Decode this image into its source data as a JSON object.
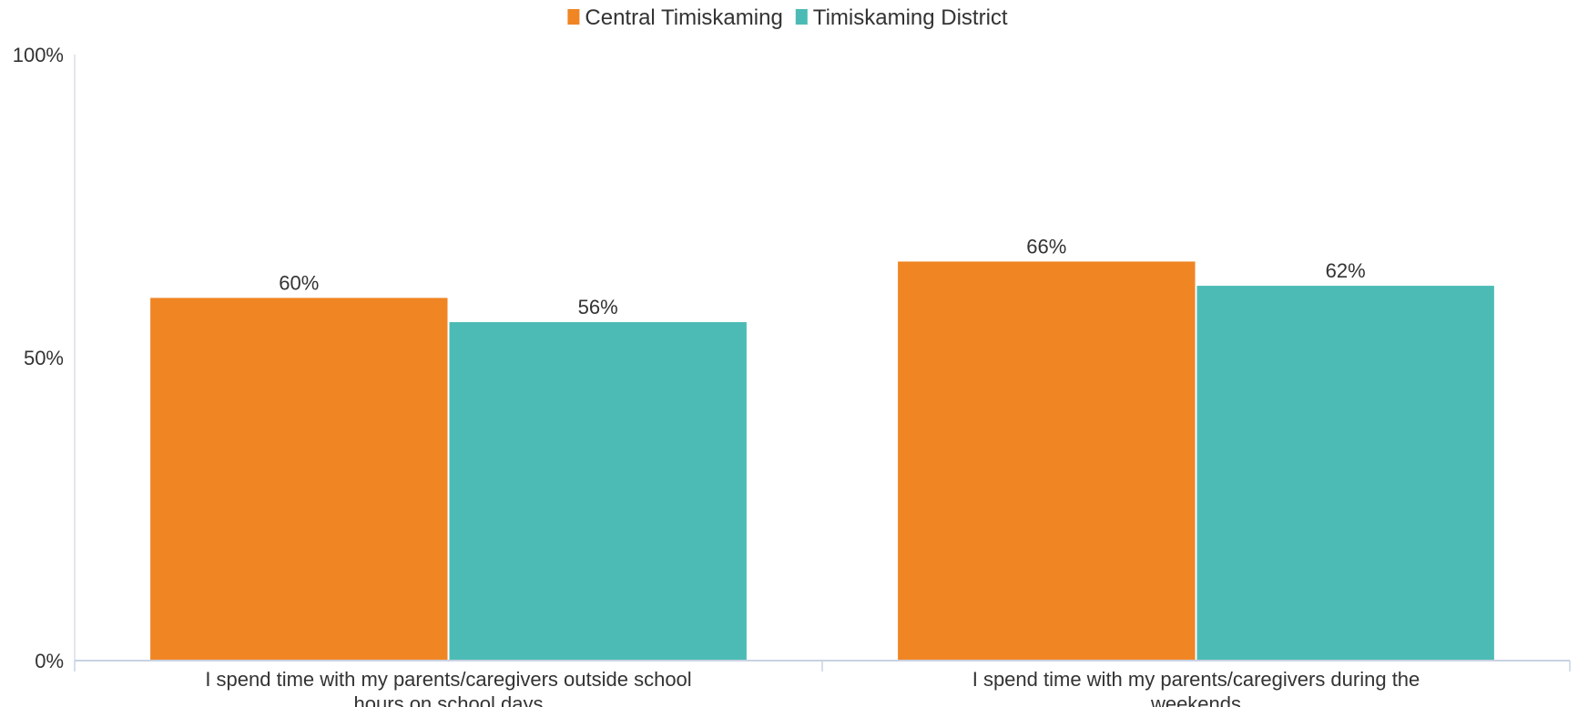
{
  "chart_data": {
    "type": "bar",
    "categories": [
      [
        "I spend time with my parents/caregivers outside school",
        "hours on school days"
      ],
      [
        "I spend time with my parents/caregivers during the",
        "weekends"
      ]
    ],
    "series": [
      {
        "name": "Central Timiskaming",
        "color": "#F08524",
        "values": [
          60,
          66
        ],
        "labels": [
          "60%",
          "66%"
        ]
      },
      {
        "name": "Timiskaming District",
        "color": "#4CBBB5",
        "values": [
          56,
          62
        ],
        "labels": [
          "56%",
          "62%"
        ]
      }
    ],
    "ylim": [
      0,
      100
    ],
    "yticks": [
      {
        "value": 0,
        "label": "0%"
      },
      {
        "value": 50,
        "label": "50%"
      },
      {
        "value": 100,
        "label": "100%"
      }
    ],
    "grid": false,
    "legend_position": "top-center"
  }
}
